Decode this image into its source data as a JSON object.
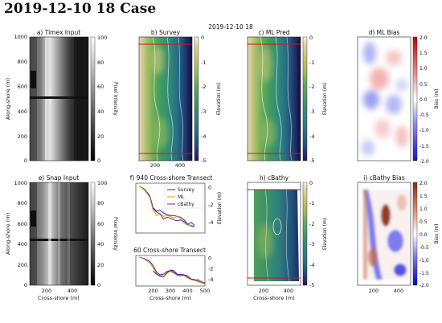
{
  "figure": {
    "title": "2019-12-10 18 Case",
    "date_label": "2019-12-10 18"
  },
  "colors": {
    "gray_bar": [
      "#000000",
      "#ffffff"
    ],
    "gist_earth": [
      "#2a1364",
      "#1f4f7c",
      "#2c7a86",
      "#3a9168",
      "#5ea85a",
      "#9cbd5b",
      "#c9c66f",
      "#dcd3a2",
      "#f5f2ee"
    ],
    "bias": [
      "#1111d8",
      "#8c8cf0",
      "#ffffff",
      "#f28c8c",
      "#cc0000"
    ],
    "survey_line": "#1f1fd0",
    "ml_line": "#e0a000",
    "cbathy_line": "#7a1f7a",
    "transect_red": "#dd1111"
  },
  "labels": {
    "along_shore": "Along-shore (m)",
    "cross_shore": "Cross-shore (m)",
    "pixel_intensity": "Pixel Intensity",
    "elevation": "Elevation (m)",
    "bias": "Bias (m)"
  },
  "panels": {
    "a": {
      "title": "a) Timex Input"
    },
    "b": {
      "title": "b) Survey"
    },
    "c": {
      "title": "c) ML Pred"
    },
    "d": {
      "title": "d) ML Bias"
    },
    "e": {
      "title": "e) Snap Input"
    },
    "f1": {
      "title": "f) 940 Cross-shore Transect"
    },
    "f2": {
      "title": "60 Cross-shore Transect"
    },
    "h": {
      "title": "h) cBathy"
    },
    "i": {
      "title": "i) cBathy Bias"
    }
  },
  "ticks": {
    "along_y": [
      "0",
      "200",
      "400",
      "600",
      "800",
      "1000"
    ],
    "cross_x": [
      "200",
      "400"
    ],
    "transect_x": [
      "200",
      "300",
      "400",
      "500"
    ],
    "intensity": [
      "0",
      "20",
      "40",
      "60",
      "80",
      "100"
    ],
    "elevation": [
      "0",
      "-1",
      "-2",
      "-3",
      "-4",
      "-5"
    ],
    "transect_y": [
      "0",
      "-2",
      "-4"
    ],
    "bias": [
      "2.0",
      "1.5",
      "1.0",
      "0.5",
      "0.0",
      "-0.5",
      "-1.0",
      "-1.5",
      "-2.0"
    ]
  },
  "chart_data": [
    {
      "type": "line",
      "title": "f) 940 Cross-shore Transect",
      "xlabel": "",
      "ylabel": "Elevation (m)",
      "xlim": [
        100,
        500
      ],
      "ylim": [
        -5.2,
        0.5
      ],
      "legend": "top-right",
      "series": [
        {
          "name": "Survey",
          "x": [
            120,
            150,
            180,
            200,
            220,
            240,
            260,
            280,
            300,
            320,
            340,
            360,
            380,
            400,
            420,
            440
          ],
          "y": [
            0.2,
            -0.2,
            -0.9,
            -2.3,
            -2.7,
            -2.6,
            -2.9,
            -3.1,
            -3.2,
            -3.2,
            -3.3,
            -3.4,
            -3.7,
            -4.2,
            -4.4,
            -4.5
          ]
        },
        {
          "name": "ML",
          "x": [
            120,
            150,
            180,
            200,
            220,
            240,
            260,
            280,
            300,
            320,
            340,
            360,
            380,
            400,
            420,
            440
          ],
          "y": [
            0.2,
            -0.3,
            -1.1,
            -2.6,
            -3.2,
            -3.0,
            -3.3,
            -3.2,
            -3.3,
            -3.5,
            -3.3,
            -3.6,
            -4.1,
            -4.3,
            -4.3,
            -4.4
          ]
        },
        {
          "name": "cBathy",
          "x": [
            200,
            220,
            240,
            260,
            280,
            300,
            320,
            340,
            360,
            380,
            400,
            420,
            440
          ],
          "y": [
            -2.4,
            -2.8,
            -3.0,
            -3.6,
            -3.4,
            -3.5,
            -3.7,
            -3.8,
            -3.7,
            -3.9,
            -4.2,
            -4.0,
            -4.3
          ]
        }
      ]
    },
    {
      "type": "line",
      "title": "60 Cross-shore Transect",
      "xlabel": "Cross-shore (m)",
      "ylabel": "",
      "xlim": [
        100,
        500
      ],
      "ylim": [
        -5.2,
        0.5
      ],
      "series": [
        {
          "name": "Survey",
          "x": [
            120,
            150,
            180,
            200,
            220,
            240,
            260,
            280,
            300,
            320,
            340,
            360,
            380,
            400,
            420,
            440,
            460,
            480,
            500
          ],
          "y": [
            0.2,
            -0.1,
            -0.6,
            -1.4,
            -2.6,
            -3.1,
            -3.0,
            -2.5,
            -2.3,
            -2.6,
            -3.1,
            -3.0,
            -3.1,
            -3.6,
            -3.9,
            -4.0,
            -4.3,
            -4.6,
            -4.7
          ]
        },
        {
          "name": "ML",
          "x": [
            120,
            150,
            180,
            200,
            220,
            240,
            260,
            280,
            300,
            320,
            340,
            360,
            380,
            400,
            420,
            440,
            460,
            480,
            500
          ],
          "y": [
            0.2,
            -0.2,
            -0.9,
            -1.8,
            -2.9,
            -3.3,
            -3.1,
            -2.7,
            -2.5,
            -2.8,
            -3.3,
            -3.2,
            -3.3,
            -3.7,
            -4.0,
            -4.1,
            -4.4,
            -4.6,
            -4.8
          ]
        },
        {
          "name": "cBathy",
          "x": [
            200,
            220,
            240,
            260,
            280,
            300,
            320,
            340,
            360,
            380,
            400,
            420,
            440,
            460,
            480,
            500
          ],
          "y": [
            -2.4,
            -3.0,
            -3.4,
            -3.5,
            -2.8,
            -2.2,
            -2.3,
            -3.0,
            -3.3,
            -3.1,
            -3.3,
            -3.9,
            -4.1,
            -4.0,
            -4.4,
            -4.6
          ]
        }
      ]
    }
  ]
}
